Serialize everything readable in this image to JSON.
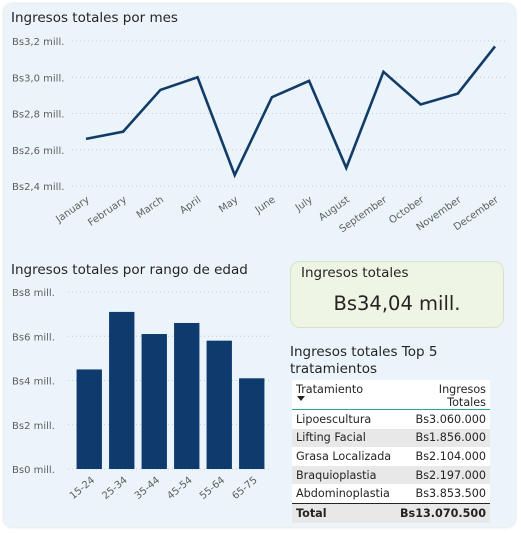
{
  "chart_data": [
    {
      "type": "line",
      "title": "Ingresos totales por mes",
      "categories": [
        "January",
        "February",
        "March",
        "April",
        "May",
        "June",
        "July",
        "August",
        "September",
        "October",
        "November",
        "December"
      ],
      "values": [
        2.66,
        2.7,
        2.93,
        3.0,
        2.46,
        2.89,
        2.98,
        2.5,
        3.03,
        2.85,
        2.91,
        3.17
      ],
      "unit": "millions Bs",
      "ylim": [
        2.4,
        3.2
      ],
      "yticks": [
        2.4,
        2.6,
        2.8,
        3.0,
        3.2
      ],
      "ytick_labels": [
        "Bs2,4 mill.",
        "Bs2,6 mill.",
        "Bs2,8 mill.",
        "Bs3,0 mill.",
        "Bs3,2 mill."
      ],
      "grid": true,
      "color": "#123b66"
    },
    {
      "type": "bar",
      "title": "Ingresos totales por rango de edad",
      "categories": [
        "15-24",
        "25-34",
        "35-44",
        "45-54",
        "55-64",
        "65-75"
      ],
      "values": [
        4.5,
        7.1,
        6.1,
        6.6,
        5.8,
        4.1
      ],
      "unit": "millions Bs",
      "ylim": [
        0,
        8
      ],
      "yticks": [
        0,
        2,
        4,
        6,
        8
      ],
      "ytick_labels": [
        "Bs0 mill.",
        "Bs2 mill.",
        "Bs4 mill.",
        "Bs6 mill.",
        "Bs8 mill."
      ],
      "grid": true,
      "color": "#0e3a6e"
    }
  ],
  "kpi": {
    "title": "Ingresos totales",
    "value": "Bs34,04 mill."
  },
  "top_table": {
    "title": "Ingresos totales Top 5 tratamientos",
    "columns": [
      "Tratamiento",
      "Ingresos Totales"
    ],
    "rows": [
      {
        "name": "Lipoescultura",
        "value": "Bs3.060.000"
      },
      {
        "name": "Lifting Facial",
        "value": "Bs1.856.000"
      },
      {
        "name": "Grasa Localizada",
        "value": "Bs2.104.000"
      },
      {
        "name": "Braquioplastia",
        "value": "Bs2.197.000"
      },
      {
        "name": "Abdominoplastia",
        "value": "Bs3.853.500"
      }
    ],
    "total": {
      "label": "Total",
      "value": "Bs13.070.500"
    }
  }
}
